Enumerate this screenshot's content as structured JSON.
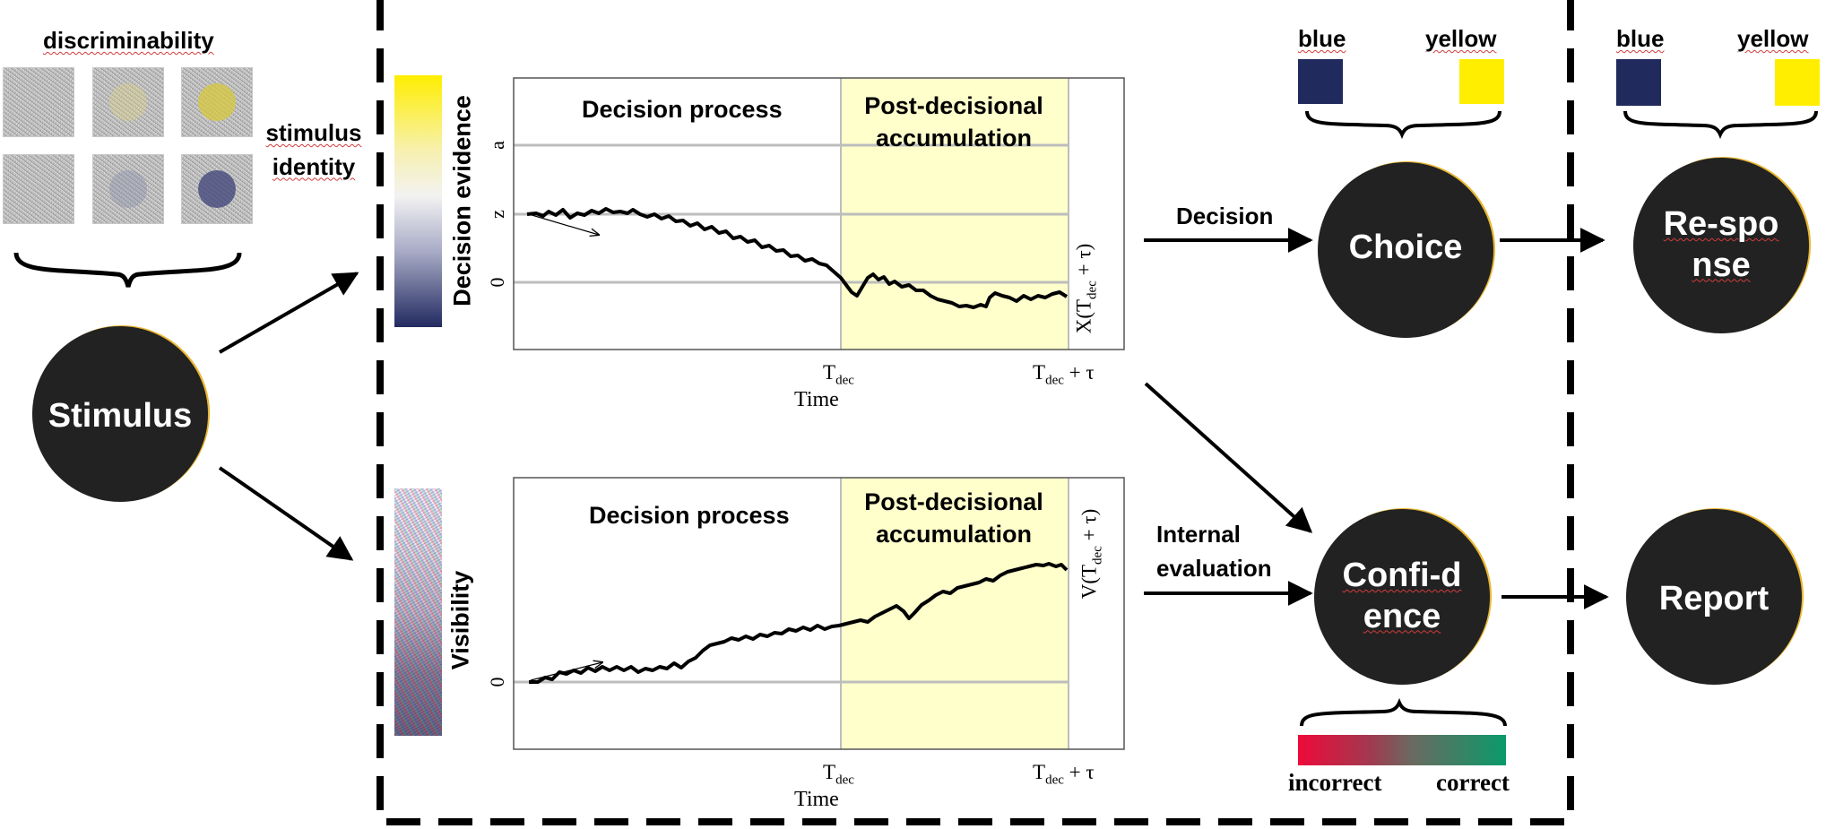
{
  "stimulus": {
    "discriminability_label": "discriminability",
    "identity_label": "stimulus identity",
    "node_label": "Stimulus"
  },
  "top_panel": {
    "axis_label": "Decision evidence",
    "region_decision": "Decision process",
    "region_post": "Post-decisional accumulation",
    "y_ticks": [
      "a",
      "z",
      "0"
    ],
    "x_tick_dec": "T",
    "x_tick_dec_sub": "dec",
    "x_tick_end": "T",
    "x_tick_end_sub": "dec",
    "x_tick_end_suffix": " + τ",
    "xlabel": "Time",
    "end_label": "X(T",
    "end_label_sub": "dec",
    "end_label_suffix": " + τ)"
  },
  "bottom_panel": {
    "axis_label": "Visibility",
    "region_decision": "Decision process",
    "region_post": "Post-decisional accumulation",
    "y_ticks": [
      "0"
    ],
    "x_tick_dec": "T",
    "x_tick_dec_sub": "dec",
    "x_tick_end": "T",
    "x_tick_end_sub": "dec",
    "x_tick_end_suffix": " + τ",
    "xlabel": "Time",
    "end_label": "V(T",
    "end_label_sub": "dec",
    "end_label_suffix": " + τ)"
  },
  "arrows": {
    "decision_label": "Decision",
    "internal_evaluation_label": "Internal evaluation"
  },
  "nodes": {
    "choice": "Choice",
    "confidence": "Confi-dence",
    "response": "Re-sponse",
    "report": "Report"
  },
  "choice_options": {
    "left": "blue",
    "right": "yellow"
  },
  "response_options": {
    "left": "blue",
    "right": "yellow"
  },
  "confidence_scale": {
    "left": "incorrect",
    "right": "correct"
  },
  "colors": {
    "node_fill": "#222222",
    "blue_swatch": "#202a5c",
    "yellow_swatch": "#ffee00",
    "post_decision_region": "#ffffcc",
    "incorrect": "#ee0a3a",
    "correct": "#0a9a6a"
  }
}
